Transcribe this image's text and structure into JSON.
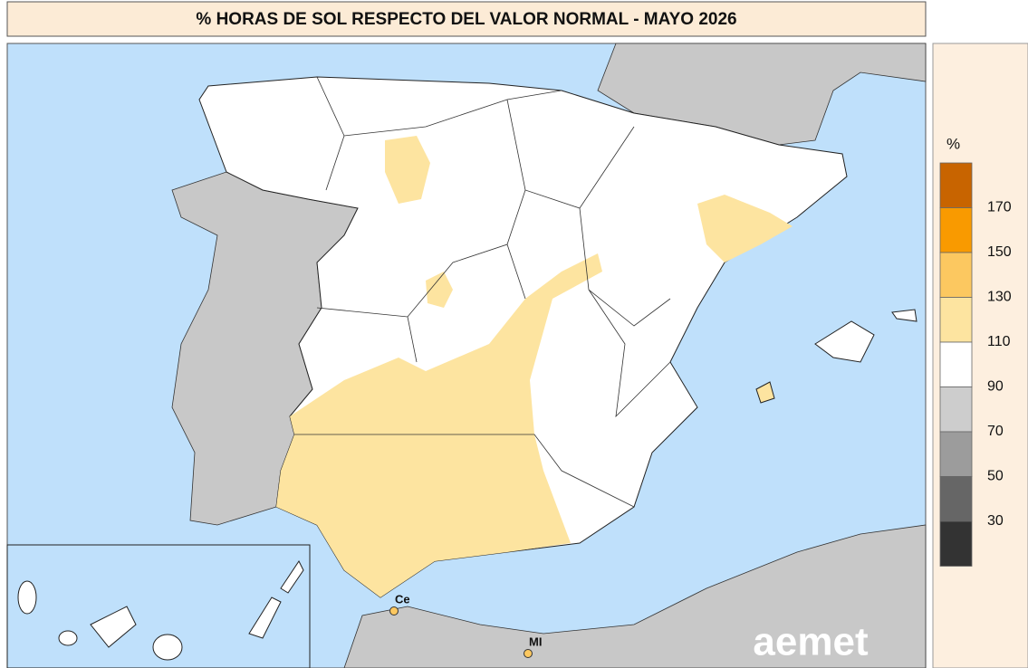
{
  "title": "% HORAS DE SOL RESPECTO DEL VALOR NORMAL - MAYO 2026",
  "legend": {
    "unit": "%",
    "colors": [
      "#c86400",
      "#f99a00",
      "#fcc860",
      "#fde4a0",
      "#ffffff",
      "#cdcdcd",
      "#9c9c9c",
      "#666666",
      "#333333"
    ],
    "thresholds": [
      170,
      150,
      130,
      110,
      90,
      70,
      50,
      30
    ]
  },
  "places": [
    {
      "label": "Ce"
    },
    {
      "label": "MI"
    }
  ],
  "logo": "aemet"
}
